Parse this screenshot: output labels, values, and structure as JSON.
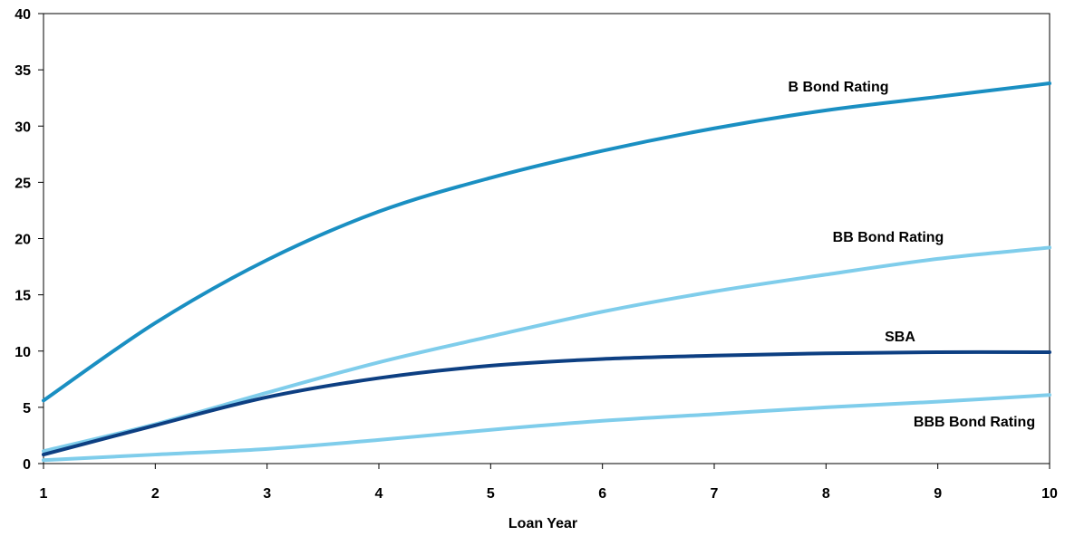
{
  "chart_data": {
    "type": "line",
    "title": "",
    "xlabel": "Loan Year",
    "ylabel": "",
    "x": [
      1,
      2,
      3,
      4,
      5,
      6,
      7,
      8,
      9,
      10
    ],
    "xlim": [
      1,
      10
    ],
    "ylim": [
      0,
      40
    ],
    "yticks": [
      0,
      5,
      10,
      15,
      20,
      25,
      30,
      35,
      40
    ],
    "xticks": [
      1,
      2,
      3,
      4,
      5,
      6,
      7,
      8,
      9,
      10
    ],
    "grid": false,
    "legend": "none",
    "series": [
      {
        "name": "B Bond Rating",
        "color": "#1a8fc2",
        "values": [
          5.6,
          12.5,
          18.1,
          22.4,
          25.4,
          27.8,
          29.8,
          31.4,
          32.6,
          33.8
        ]
      },
      {
        "name": "BB Bond Rating",
        "color": "#7fcdeb",
        "values": [
          1.1,
          3.5,
          6.3,
          9.0,
          11.3,
          13.5,
          15.3,
          16.8,
          18.2,
          19.2
        ]
      },
      {
        "name": "SBA",
        "color": "#0d3f82",
        "values": [
          0.8,
          3.4,
          5.9,
          7.6,
          8.7,
          9.3,
          9.6,
          9.8,
          9.9,
          9.9
        ]
      },
      {
        "name": "BBB Bond Rating",
        "color": "#7fcdeb",
        "values": [
          0.3,
          0.8,
          1.3,
          2.1,
          3.0,
          3.8,
          4.4,
          5.0,
          5.5,
          6.1
        ]
      }
    ]
  }
}
